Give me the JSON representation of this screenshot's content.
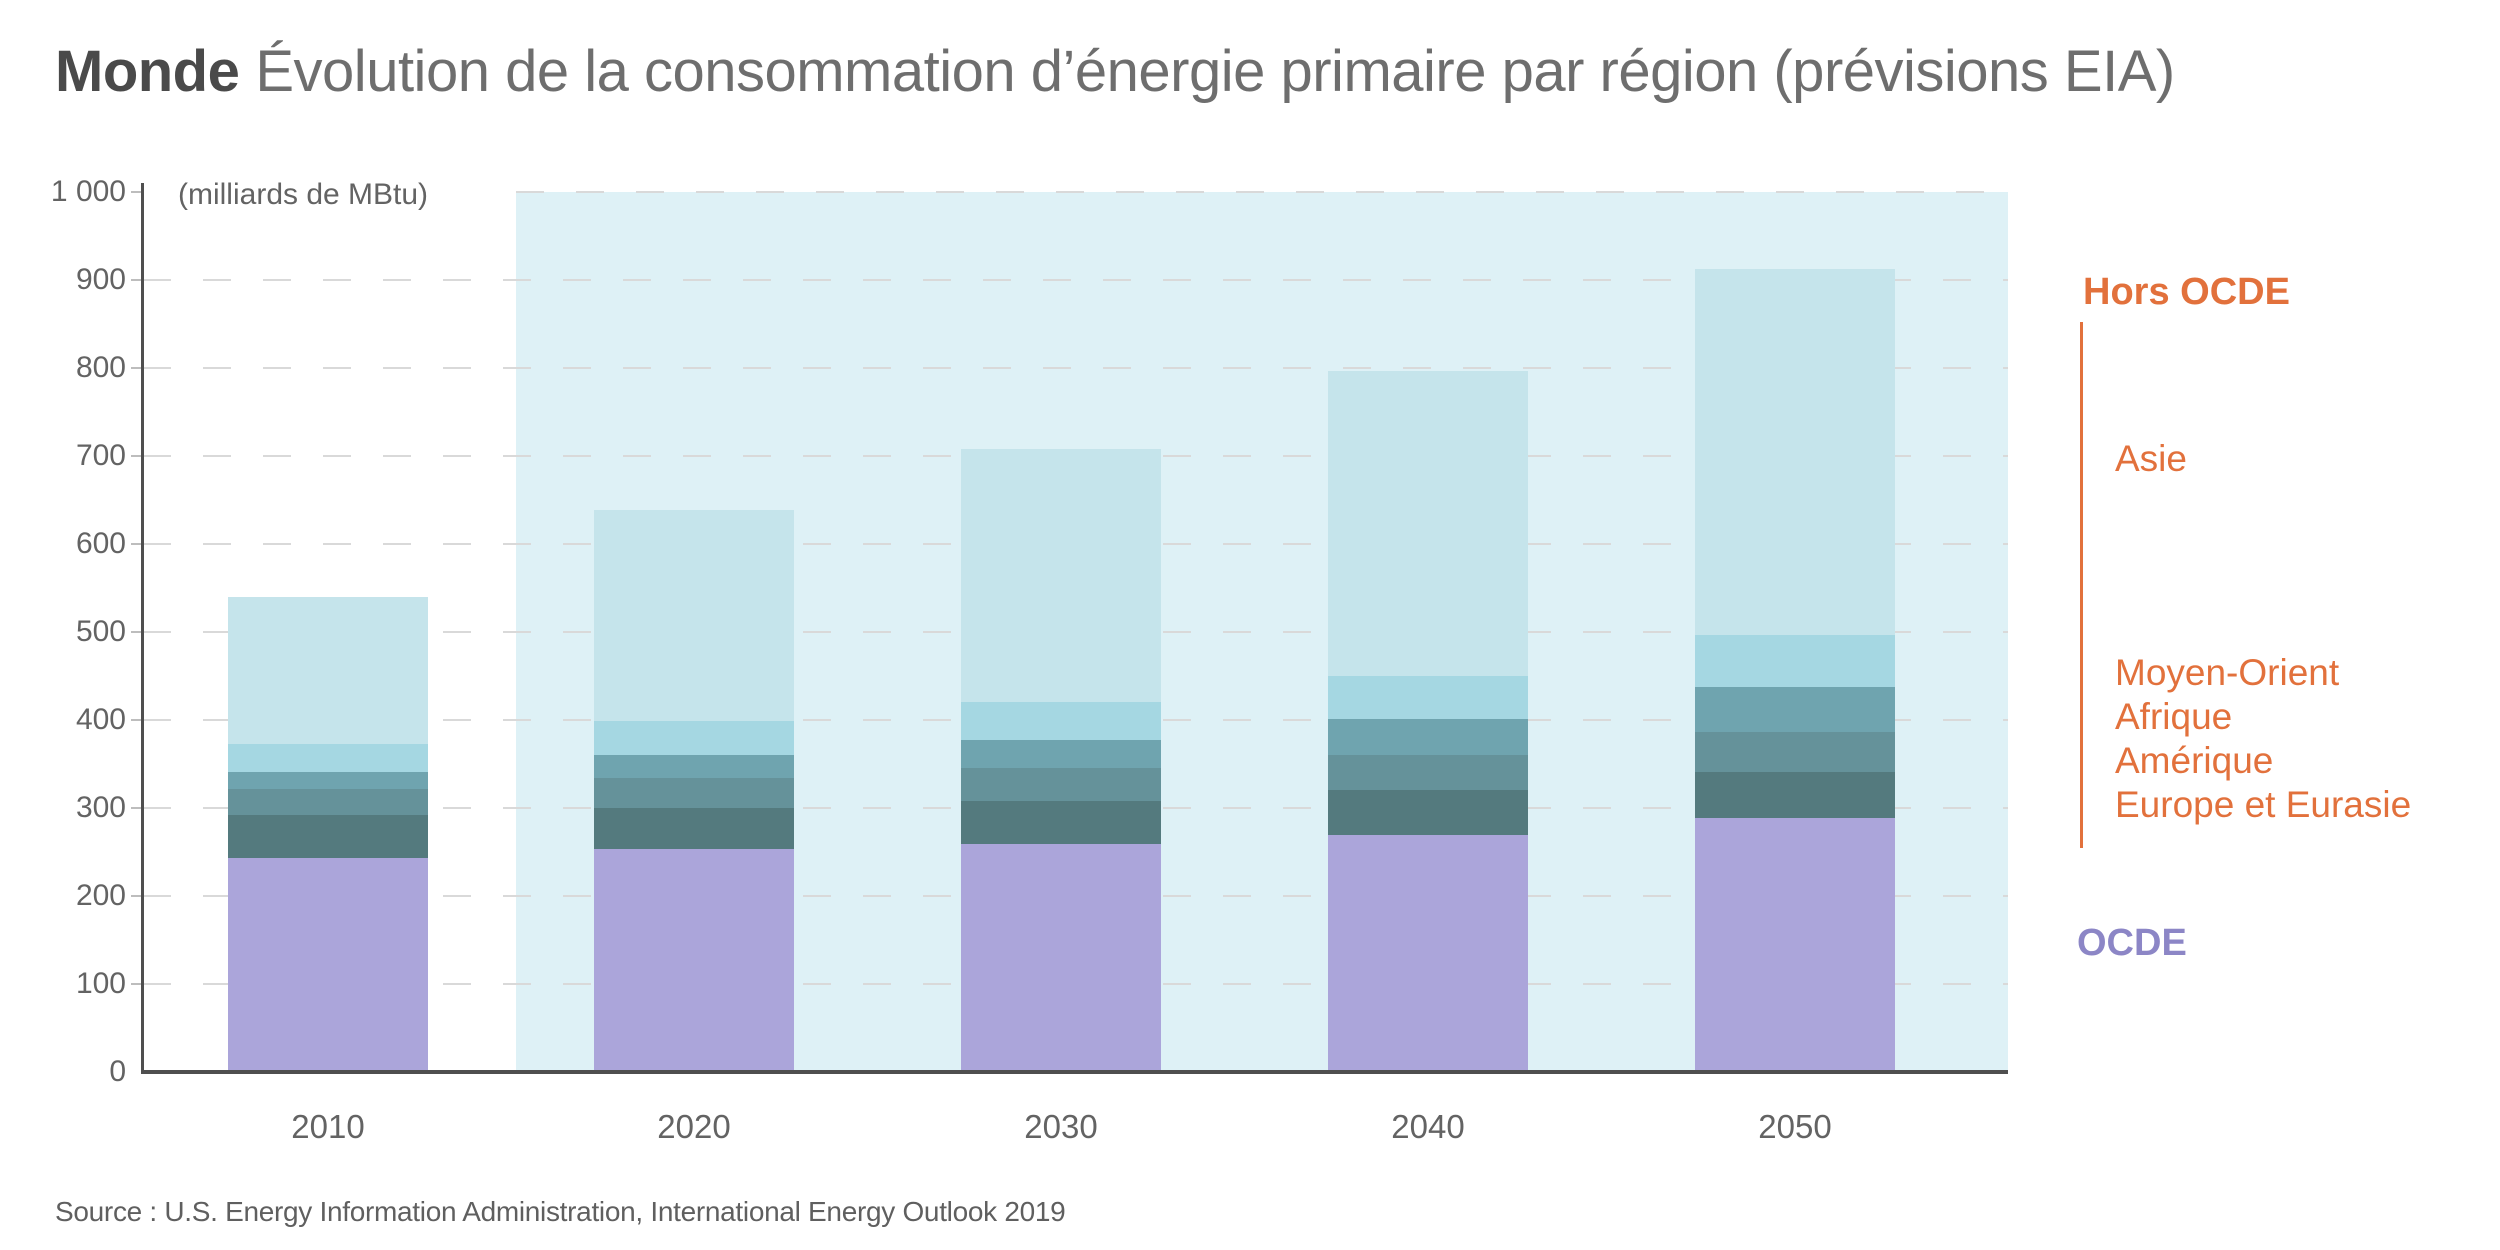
{
  "title": {
    "prefix": "Monde",
    "text": "Évolution de la consommation d’énergie primaire par région (prévisions EIA)"
  },
  "axis": {
    "unit_label": "(milliards de MBtu)",
    "y_ticks": [
      "0",
      "100",
      "200",
      "300",
      "400",
      "500",
      "600",
      "700",
      "800",
      "900",
      "1 000"
    ],
    "x_labels": [
      "2010",
      "2020",
      "2030",
      "2040",
      "2050"
    ]
  },
  "legend": {
    "hors_ocde_title": "Hors OCDE",
    "hors_ocde_color": "#e2713c",
    "items": [
      "Asie",
      "Moyen-Orient",
      "Afrique",
      "Amérique",
      "Europe et Eurasie"
    ],
    "ocde_title": "OCDE",
    "ocde_color": "#8c86c6"
  },
  "source": "Source : U.S. Energy Information Administration, International Energy Outlook 2019",
  "colors": {
    "forecast_band": "#def1f6",
    "gridline": "#d9d9d9",
    "axis": "#4f4f4f"
  },
  "chart_data": {
    "type": "bar",
    "stacked": true,
    "title": "Monde — Évolution de la consommation d’énergie primaire par région (prévisions EIA)",
    "ylabel": "(milliards de MBtu)",
    "ylim": [
      0,
      1000
    ],
    "ytick_step": 100,
    "grid": "dashed-horizontal",
    "legend_position": "right",
    "categories": [
      "2010",
      "2020",
      "2030",
      "2040",
      "2050"
    ],
    "series": [
      {
        "name": "OCDE",
        "group": "OCDE",
        "color": "#aba5da",
        "values": [
          241,
          251,
          257,
          267,
          286
        ]
      },
      {
        "name": "Europe et Eurasie",
        "group": "Hors OCDE",
        "color": "#547a7e",
        "values": [
          49,
          47,
          49,
          51,
          53
        ]
      },
      {
        "name": "Amérique",
        "group": "Hors OCDE",
        "color": "#65929a",
        "values": [
          29,
          34,
          37,
          40,
          45
        ]
      },
      {
        "name": "Afrique",
        "group": "Hors OCDE",
        "color": "#6fa4af",
        "values": [
          20,
          26,
          32,
          41,
          51
        ]
      },
      {
        "name": "Moyen-Orient",
        "group": "Hors OCDE",
        "color": "#a5d7e2",
        "values": [
          31,
          39,
          43,
          49,
          59
        ]
      },
      {
        "name": "Asie",
        "group": "Hors OCDE",
        "color": "#c5e4eb",
        "values": [
          168,
          239,
          288,
          346,
          416
        ]
      }
    ],
    "totals": [
      538,
      636,
      706,
      794,
      910
    ],
    "forecast_band": {
      "covers_categories": [
        "2020",
        "2030",
        "2040",
        "2050"
      ],
      "color": "#def1f6"
    }
  }
}
